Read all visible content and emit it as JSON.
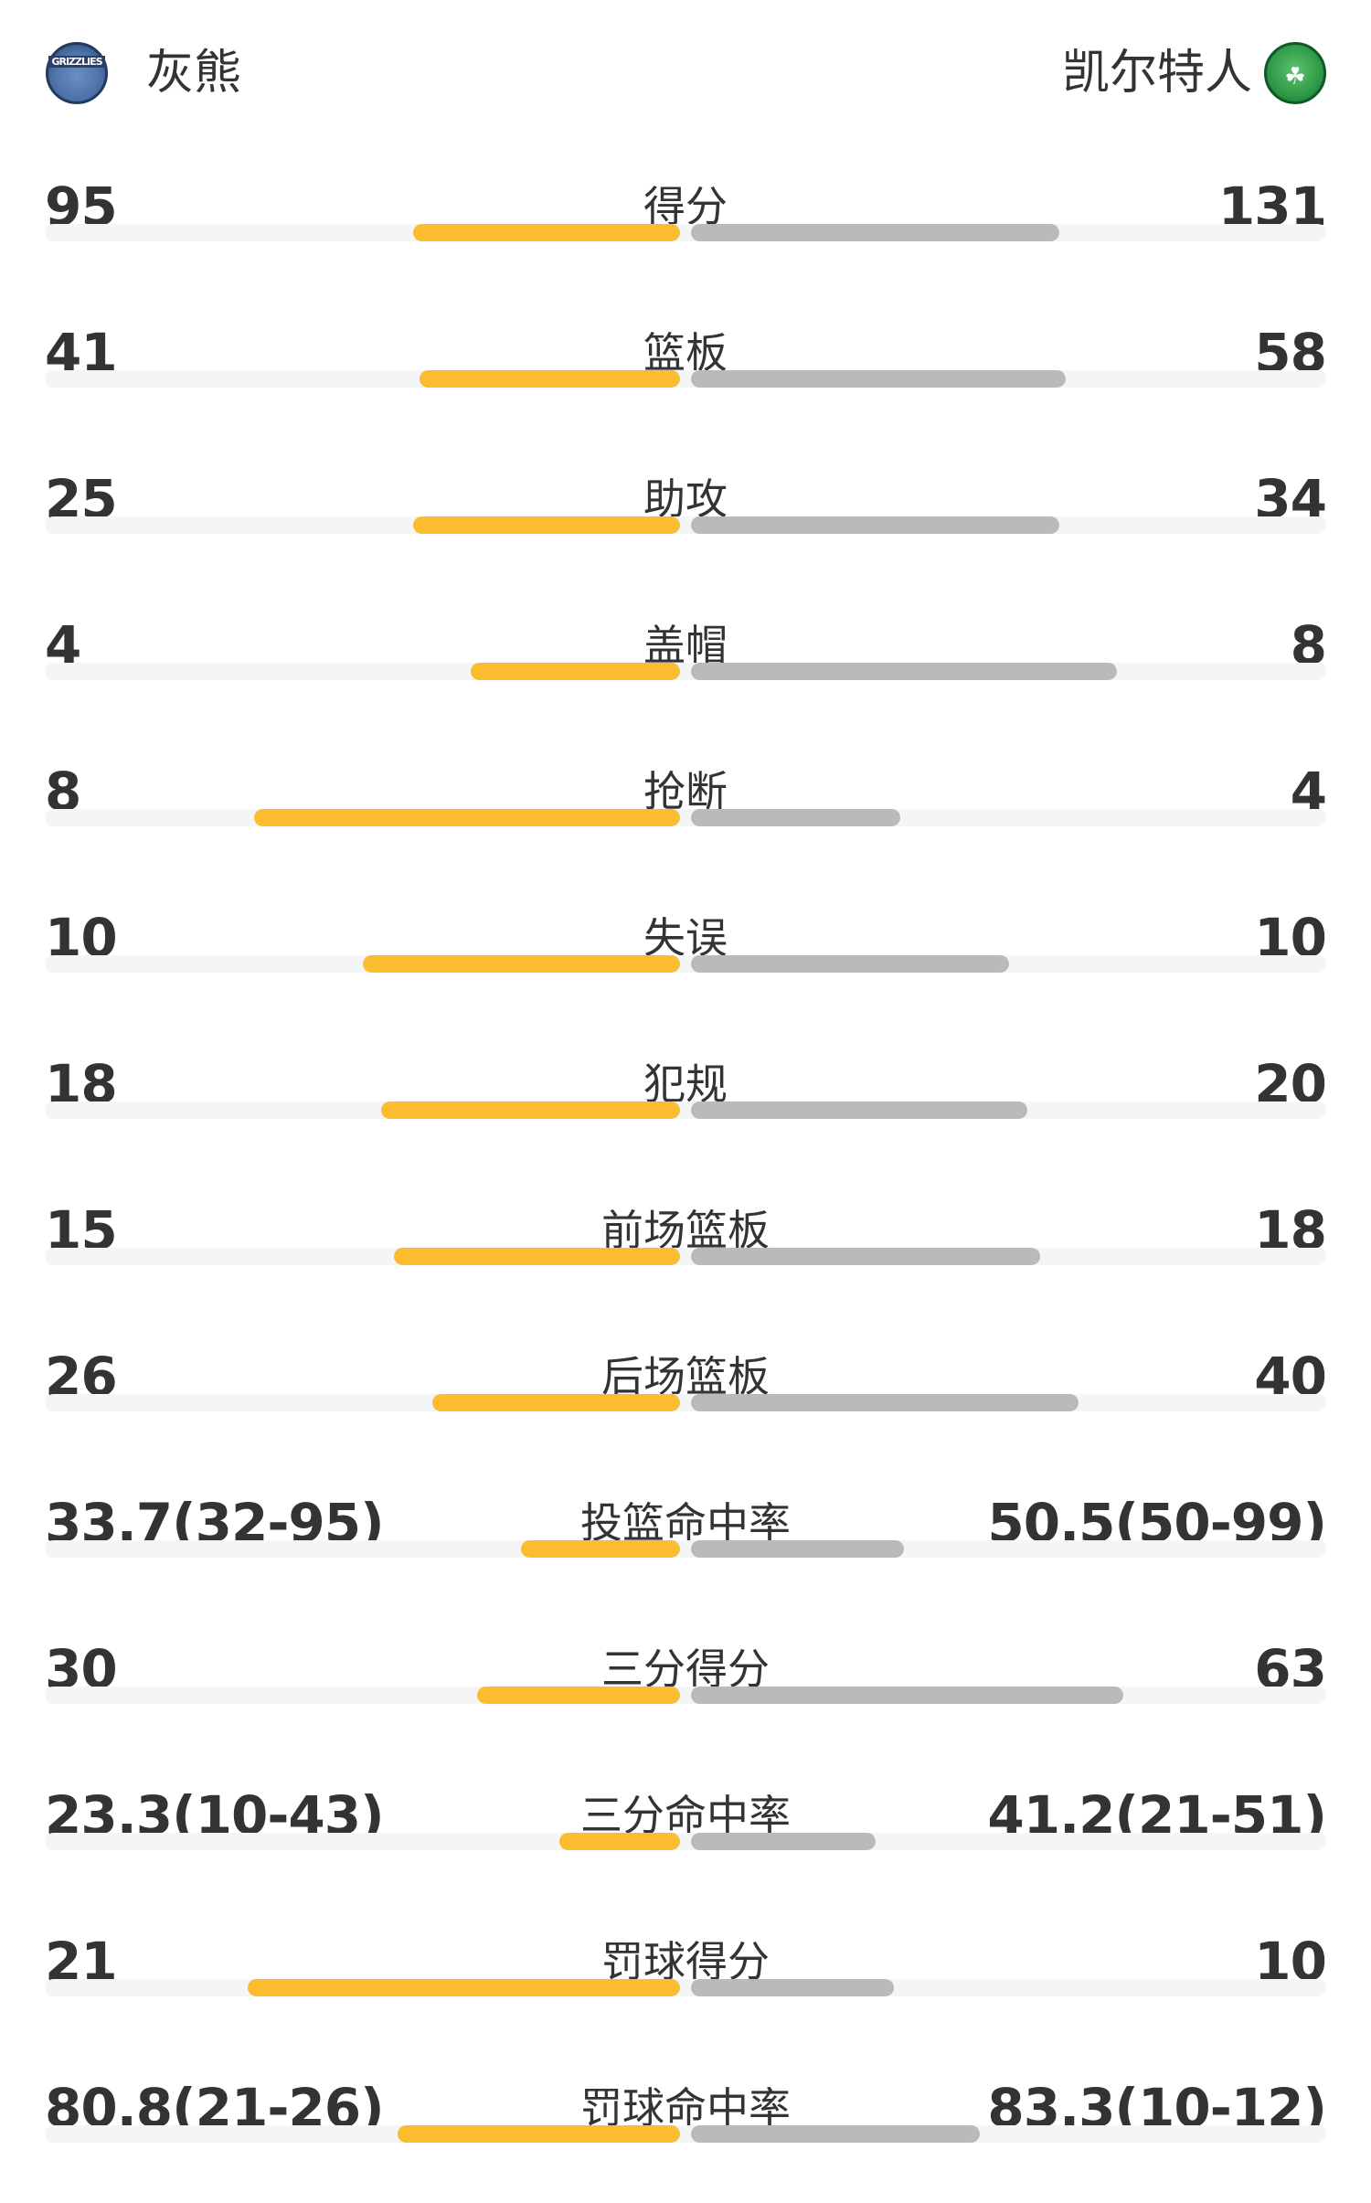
{
  "home": {
    "name": "灰熊",
    "logo_text": "GRIZZLIES",
    "logo_icon": "grizzlies-logo",
    "color": "#fbbd2f"
  },
  "away": {
    "name": "凯尔特人",
    "logo_text": "☘",
    "logo_icon": "celtics-logo",
    "color": "#bababa"
  },
  "stats": [
    {
      "label": "得分",
      "home": "95",
      "away": "131",
      "home_fill": 0.42,
      "away_fill": 0.58
    },
    {
      "label": "篮板",
      "home": "41",
      "away": "58",
      "home_fill": 0.41,
      "away_fill": 0.59
    },
    {
      "label": "助攻",
      "home": "25",
      "away": "34",
      "home_fill": 0.42,
      "away_fill": 0.58
    },
    {
      "label": "盖帽",
      "home": "4",
      "away": "8",
      "home_fill": 0.33,
      "away_fill": 0.67
    },
    {
      "label": "抢断",
      "home": "8",
      "away": "4",
      "home_fill": 0.67,
      "away_fill": 0.33
    },
    {
      "label": "失误",
      "home": "10",
      "away": "10",
      "home_fill": 0.5,
      "away_fill": 0.5
    },
    {
      "label": "犯规",
      "home": "18",
      "away": "20",
      "home_fill": 0.47,
      "away_fill": 0.53
    },
    {
      "label": "前场篮板",
      "home": "15",
      "away": "18",
      "home_fill": 0.45,
      "away_fill": 0.55
    },
    {
      "label": "后场篮板",
      "home": "26",
      "away": "40",
      "home_fill": 0.39,
      "away_fill": 0.61
    },
    {
      "label": "投篮命中率",
      "home": "33.7(32-95)",
      "away": "50.5(50-99)",
      "home_fill": 0.25,
      "away_fill": 0.335
    },
    {
      "label": "三分得分",
      "home": "30",
      "away": "63",
      "home_fill": 0.32,
      "away_fill": 0.68
    },
    {
      "label": "三分命中率",
      "home": "23.3(10-43)",
      "away": "41.2(21-51)",
      "home_fill": 0.19,
      "away_fill": 0.29
    },
    {
      "label": "罚球得分",
      "home": "21",
      "away": "10",
      "home_fill": 0.68,
      "away_fill": 0.32
    },
    {
      "label": "罚球命中率",
      "home": "80.8(21-26)",
      "away": "83.3(10-12)",
      "home_fill": 0.445,
      "away_fill": 0.455
    }
  ]
}
